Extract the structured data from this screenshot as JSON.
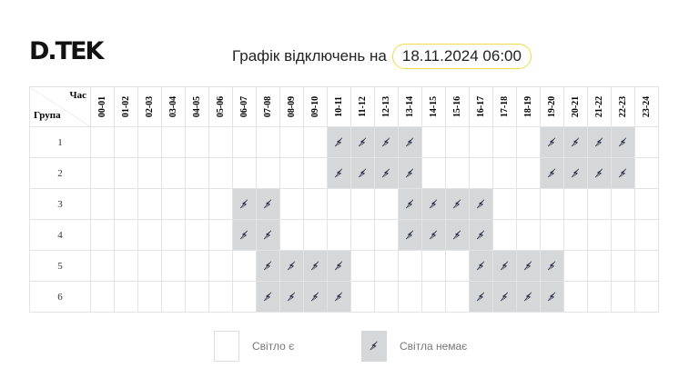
{
  "logo": "D.TEK",
  "header": {
    "title": "Графік відключень на",
    "date": "18.11.2024 06:00"
  },
  "table": {
    "hour_label": "Час",
    "group_label": "Група",
    "hours": [
      "00-01",
      "01-02",
      "02-03",
      "03-04",
      "04-05",
      "05-06",
      "06-07",
      "07-08",
      "08-09",
      "09-10",
      "10-11",
      "11-12",
      "12-13",
      "13-14",
      "14-15",
      "15-16",
      "16-17",
      "17-18",
      "18-19",
      "19-20",
      "20-21",
      "21-22",
      "22-23",
      "23-24"
    ],
    "groups": [
      {
        "name": "1",
        "outages": [
          "10-11",
          "11-12",
          "12-13",
          "13-14",
          "19-20",
          "20-21",
          "21-22",
          "22-23"
        ]
      },
      {
        "name": "2",
        "outages": [
          "10-11",
          "11-12",
          "12-13",
          "13-14",
          "19-20",
          "20-21",
          "21-22",
          "22-23"
        ]
      },
      {
        "name": "3",
        "outages": [
          "06-07",
          "07-08",
          "13-14",
          "14-15",
          "15-16",
          "16-17"
        ]
      },
      {
        "name": "4",
        "outages": [
          "06-07",
          "07-08",
          "13-14",
          "14-15",
          "15-16",
          "16-17"
        ]
      },
      {
        "name": "5",
        "outages": [
          "07-08",
          "08-09",
          "09-10",
          "10-11",
          "16-17",
          "17-18",
          "18-19",
          "19-20"
        ]
      },
      {
        "name": "6",
        "outages": [
          "07-08",
          "08-09",
          "09-10",
          "10-11",
          "16-17",
          "17-18",
          "18-19",
          "19-20"
        ]
      }
    ],
    "outage_icon": "power-off-plug-icon"
  },
  "legend": {
    "on": "Світло є",
    "off": "Світла немає"
  },
  "colors": {
    "outage": "#d6d7d9",
    "accent": "#f6d500",
    "icon": "#2a2f45"
  }
}
